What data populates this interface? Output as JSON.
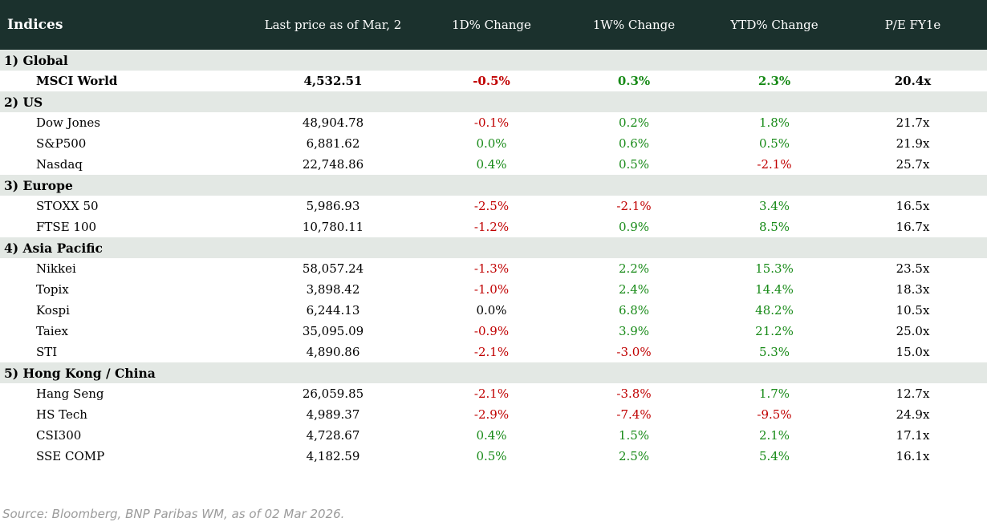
{
  "colors": {
    "header_bg": "#1b312d",
    "header_text": "#ffffff",
    "section_band_bg": "#e3e8e4",
    "positive": "#178a17",
    "negative": "#c00000",
    "flat": "#000000",
    "source_text": "#9b9b9b"
  },
  "table": {
    "columns": [
      "Indices",
      "Last price as of Mar, 2",
      "1D% Change",
      "1W% Change",
      "YTD% Change",
      "P/E FY1e"
    ],
    "sections": [
      {
        "label": "1) Global",
        "rows": [
          {
            "name": "MSCI World",
            "bold": true,
            "last_price": "4,532.51",
            "changes": [
              {
                "value": "-0.5%",
                "tone": "neg"
              },
              {
                "value": "0.3%",
                "tone": "pos"
              },
              {
                "value": "2.3%",
                "tone": "pos"
              }
            ],
            "pe": "20.4x"
          }
        ]
      },
      {
        "label": "2) US",
        "rows": [
          {
            "name": "Dow Jones",
            "bold": false,
            "last_price": "48,904.78",
            "changes": [
              {
                "value": "-0.1%",
                "tone": "neg"
              },
              {
                "value": "0.2%",
                "tone": "pos"
              },
              {
                "value": "1.8%",
                "tone": "pos"
              }
            ],
            "pe": "21.7x"
          },
          {
            "name": "S&P500",
            "bold": false,
            "last_price": "6,881.62",
            "changes": [
              {
                "value": "0.0%",
                "tone": "pos"
              },
              {
                "value": "0.6%",
                "tone": "pos"
              },
              {
                "value": "0.5%",
                "tone": "pos"
              }
            ],
            "pe": "21.9x"
          },
          {
            "name": "Nasdaq",
            "bold": false,
            "last_price": "22,748.86",
            "changes": [
              {
                "value": "0.4%",
                "tone": "pos"
              },
              {
                "value": "0.5%",
                "tone": "pos"
              },
              {
                "value": "-2.1%",
                "tone": "neg"
              }
            ],
            "pe": "25.7x"
          }
        ]
      },
      {
        "label": "3) Europe",
        "rows": [
          {
            "name": "STOXX 50",
            "bold": false,
            "last_price": "5,986.93",
            "changes": [
              {
                "value": "-2.5%",
                "tone": "neg"
              },
              {
                "value": "-2.1%",
                "tone": "neg"
              },
              {
                "value": "3.4%",
                "tone": "pos"
              }
            ],
            "pe": "16.5x"
          },
          {
            "name": "FTSE 100",
            "bold": false,
            "last_price": "10,780.11",
            "changes": [
              {
                "value": "-1.2%",
                "tone": "neg"
              },
              {
                "value": "0.9%",
                "tone": "pos"
              },
              {
                "value": "8.5%",
                "tone": "pos"
              }
            ],
            "pe": "16.7x"
          }
        ]
      },
      {
        "label": "4) Asia Pacific",
        "rows": [
          {
            "name": "Nikkei",
            "bold": false,
            "last_price": "58,057.24",
            "changes": [
              {
                "value": "-1.3%",
                "tone": "neg"
              },
              {
                "value": "2.2%",
                "tone": "pos"
              },
              {
                "value": "15.3%",
                "tone": "pos"
              }
            ],
            "pe": "23.5x"
          },
          {
            "name": "Topix",
            "bold": false,
            "last_price": "3,898.42",
            "changes": [
              {
                "value": "-1.0%",
                "tone": "neg"
              },
              {
                "value": "2.4%",
                "tone": "pos"
              },
              {
                "value": "14.4%",
                "tone": "pos"
              }
            ],
            "pe": "18.3x"
          },
          {
            "name": "Kospi",
            "bold": false,
            "last_price": "6,244.13",
            "changes": [
              {
                "value": "0.0%",
                "tone": "flat"
              },
              {
                "value": "6.8%",
                "tone": "pos"
              },
              {
                "value": "48.2%",
                "tone": "pos"
              }
            ],
            "pe": "10.5x"
          },
          {
            "name": "Taiex",
            "bold": false,
            "last_price": "35,095.09",
            "changes": [
              {
                "value": "-0.9%",
                "tone": "neg"
              },
              {
                "value": "3.9%",
                "tone": "pos"
              },
              {
                "value": "21.2%",
                "tone": "pos"
              }
            ],
            "pe": "25.0x"
          },
          {
            "name": "STI",
            "bold": false,
            "last_price": "4,890.86",
            "changes": [
              {
                "value": "-2.1%",
                "tone": "neg"
              },
              {
                "value": "-3.0%",
                "tone": "neg"
              },
              {
                "value": "5.3%",
                "tone": "pos"
              }
            ],
            "pe": "15.0x"
          }
        ]
      },
      {
        "label": "5) Hong Kong / China",
        "rows": [
          {
            "name": "Hang Seng",
            "bold": false,
            "last_price": "26,059.85",
            "changes": [
              {
                "value": "-2.1%",
                "tone": "neg"
              },
              {
                "value": "-3.8%",
                "tone": "neg"
              },
              {
                "value": "1.7%",
                "tone": "pos"
              }
            ],
            "pe": "12.7x"
          },
          {
            "name": "HS Tech",
            "bold": false,
            "last_price": "4,989.37",
            "changes": [
              {
                "value": "-2.9%",
                "tone": "neg"
              },
              {
                "value": "-7.4%",
                "tone": "neg"
              },
              {
                "value": "-9.5%",
                "tone": "neg"
              }
            ],
            "pe": "24.9x"
          },
          {
            "name": "CSI300",
            "bold": false,
            "last_price": "4,728.67",
            "changes": [
              {
                "value": "0.4%",
                "tone": "pos"
              },
              {
                "value": "1.5%",
                "tone": "pos"
              },
              {
                "value": "2.1%",
                "tone": "pos"
              }
            ],
            "pe": "17.1x"
          },
          {
            "name": "SSE COMP",
            "bold": false,
            "last_price": "4,182.59",
            "changes": [
              {
                "value": "0.5%",
                "tone": "pos"
              },
              {
                "value": "2.5%",
                "tone": "pos"
              },
              {
                "value": "5.4%",
                "tone": "pos"
              }
            ],
            "pe": "16.1x"
          }
        ]
      }
    ]
  },
  "source_note": "Source: Bloomberg, BNP Paribas WM, as of 02 Mar 2026.",
  "chart_data": {
    "type": "table",
    "title": "Indices",
    "columns": [
      "Indices",
      "Last price as of Mar, 2",
      "1D% Change",
      "1W% Change",
      "YTD% Change",
      "P/E FY1e"
    ],
    "sections": [
      {
        "name": "1) Global",
        "rows": [
          {
            "index": "MSCI World",
            "last_price": 4532.51,
            "chg_1d_pct": -0.5,
            "chg_1w_pct": 0.3,
            "chg_ytd_pct": 2.3,
            "pe_fy1e": "20.4x"
          }
        ]
      },
      {
        "name": "2) US",
        "rows": [
          {
            "index": "Dow Jones",
            "last_price": 48904.78,
            "chg_1d_pct": -0.1,
            "chg_1w_pct": 0.2,
            "chg_ytd_pct": 1.8,
            "pe_fy1e": "21.7x"
          },
          {
            "index": "S&P500",
            "last_price": 6881.62,
            "chg_1d_pct": 0.0,
            "chg_1w_pct": 0.6,
            "chg_ytd_pct": 0.5,
            "pe_fy1e": "21.9x"
          },
          {
            "index": "Nasdaq",
            "last_price": 22748.86,
            "chg_1d_pct": 0.4,
            "chg_1w_pct": 0.5,
            "chg_ytd_pct": -2.1,
            "pe_fy1e": "25.7x"
          }
        ]
      },
      {
        "name": "3) Europe",
        "rows": [
          {
            "index": "STOXX 50",
            "last_price": 5986.93,
            "chg_1d_pct": -2.5,
            "chg_1w_pct": -2.1,
            "chg_ytd_pct": 3.4,
            "pe_fy1e": "16.5x"
          },
          {
            "index": "FTSE 100",
            "last_price": 10780.11,
            "chg_1d_pct": -1.2,
            "chg_1w_pct": 0.9,
            "chg_ytd_pct": 8.5,
            "pe_fy1e": "16.7x"
          }
        ]
      },
      {
        "name": "4) Asia Pacific",
        "rows": [
          {
            "index": "Nikkei",
            "last_price": 58057.24,
            "chg_1d_pct": -1.3,
            "chg_1w_pct": 2.2,
            "chg_ytd_pct": 15.3,
            "pe_fy1e": "23.5x"
          },
          {
            "index": "Topix",
            "last_price": 3898.42,
            "chg_1d_pct": -1.0,
            "chg_1w_pct": 2.4,
            "chg_ytd_pct": 14.4,
            "pe_fy1e": "18.3x"
          },
          {
            "index": "Kospi",
            "last_price": 6244.13,
            "chg_1d_pct": 0.0,
            "chg_1w_pct": 6.8,
            "chg_ytd_pct": 48.2,
            "pe_fy1e": "10.5x"
          },
          {
            "index": "Taiex",
            "last_price": 35095.09,
            "chg_1d_pct": -0.9,
            "chg_1w_pct": 3.9,
            "chg_ytd_pct": 21.2,
            "pe_fy1e": "25.0x"
          },
          {
            "index": "STI",
            "last_price": 4890.86,
            "chg_1d_pct": -2.1,
            "chg_1w_pct": -3.0,
            "chg_ytd_pct": 5.3,
            "pe_fy1e": "15.0x"
          }
        ]
      },
      {
        "name": "5) Hong Kong / China",
        "rows": [
          {
            "index": "Hang Seng",
            "last_price": 26059.85,
            "chg_1d_pct": -2.1,
            "chg_1w_pct": -3.8,
            "chg_ytd_pct": 1.7,
            "pe_fy1e": "12.7x"
          },
          {
            "index": "HS Tech",
            "last_price": 4989.37,
            "chg_1d_pct": -2.9,
            "chg_1w_pct": -7.4,
            "chg_ytd_pct": -9.5,
            "pe_fy1e": "24.9x"
          },
          {
            "index": "CSI300",
            "last_price": 4728.67,
            "chg_1d_pct": 0.4,
            "chg_1w_pct": 1.5,
            "chg_ytd_pct": 2.1,
            "pe_fy1e": "17.1x"
          },
          {
            "index": "SSE COMP",
            "last_price": 4182.59,
            "chg_1d_pct": 0.5,
            "chg_1w_pct": 2.5,
            "chg_ytd_pct": 5.4,
            "pe_fy1e": "16.1x"
          }
        ]
      }
    ],
    "notes": "Negative changes shown in red (#c00000), positive in green (#178a17); Kospi 1D 0.0% shown in black."
  }
}
